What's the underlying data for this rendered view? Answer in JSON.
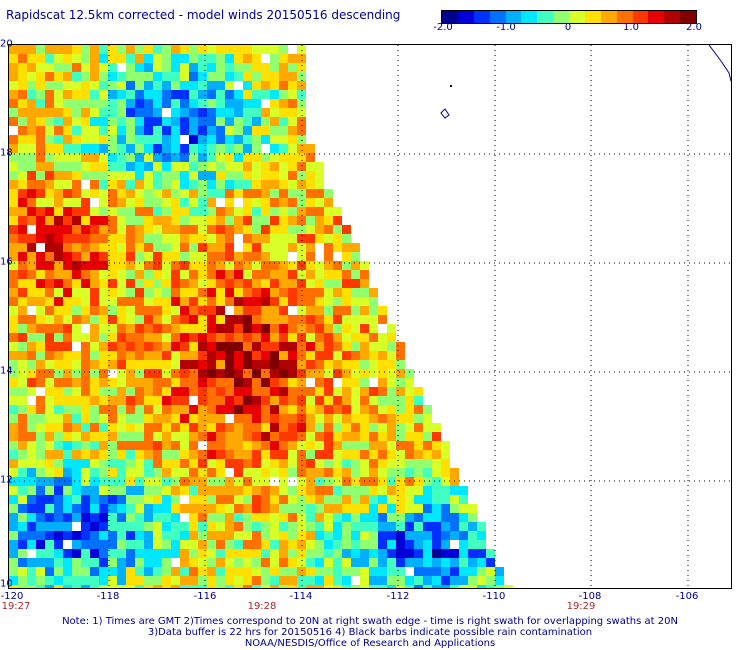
{
  "header": {
    "title": "Rapidscat 12.5km corrected - model winds 20150516 descending"
  },
  "colorbar": {
    "min": -2.0,
    "max": 2.0,
    "tick_labels": [
      "-2.0",
      "-1.0",
      "0",
      "1.0",
      "2.0"
    ],
    "colors": [
      "#00008f",
      "#0000d8",
      "#0030ff",
      "#0070ff",
      "#00b0ff",
      "#00e8ff",
      "#40ffc0",
      "#90ff70",
      "#d8ff28",
      "#ffe000",
      "#ffa800",
      "#ff7000",
      "#ff3800",
      "#e80000",
      "#b00000",
      "#800000"
    ]
  },
  "map": {
    "lon_range": [
      -120,
      -105.5
    ],
    "lat_range": [
      10,
      20
    ],
    "x_tick_labels": [
      "-120",
      "-118",
      "-116",
      "-114",
      "-112",
      "-110",
      "-108",
      "-106"
    ],
    "y_tick_labels": [
      "10",
      "12",
      "14",
      "16",
      "18",
      "20"
    ],
    "time_labels": [
      "19:27",
      "19:28",
      "19:29"
    ],
    "field": "model wind difference",
    "gridlines": "dotted"
  },
  "footer": {
    "note_line1": "Note: 1) Times are GMT 2)Times correspond to 20N at right swath edge - time is right swath for overlapping swaths at 20N",
    "note_line2": "3)Data buffer is 22 hrs for 20150516 4) Black barbs indicate possible rain contamination",
    "credit": "NOAA/NESDIS/Office of Research and Applications"
  }
}
